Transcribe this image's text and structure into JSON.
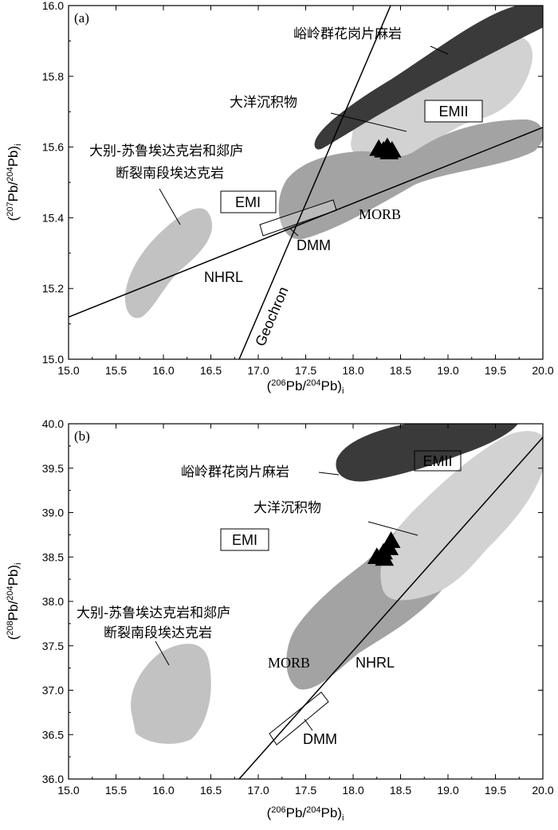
{
  "chart_data": [
    {
      "type": "scatter",
      "panel": "(a)",
      "xlabel": "(206Pb/204Pb)i",
      "ylabel": "(207Pb/204Pb)i",
      "xlim": [
        15.0,
        20.0
      ],
      "ylim": [
        15.0,
        16.0
      ],
      "x_ticks": [
        "15.0",
        "15.5",
        "16.0",
        "16.5",
        "17.0",
        "17.5",
        "18.0",
        "18.5",
        "19.0",
        "19.5",
        "20.0"
      ],
      "y_ticks": [
        "15.0",
        "15.2",
        "15.4",
        "15.6",
        "15.8",
        "16.0"
      ],
      "regions": [
        {
          "name": "峪岭群花岗片麻岩",
          "color": "#3a3a3a"
        },
        {
          "name": "大洋沉积物",
          "color": "#d2d2d2"
        },
        {
          "name": "MORB",
          "color": "#a3a3a3"
        },
        {
          "name": "大别-苏鲁埃达克岩和郯庐断裂南段埃达克岩",
          "color": "#c2c2c2"
        }
      ],
      "labels": {
        "emii": "EMII",
        "emi": "EMI",
        "dmm": "DMM",
        "nhrl": "NHRL",
        "morb": "MORB",
        "geochron": "Geochron",
        "granite": "峪岭群花岗片麻岩",
        "ocean": "大洋沉积物",
        "adakite_line1": "大别-苏鲁埃达克岩和郯庐",
        "adakite_line2": "断裂南段埃达克岩"
      },
      "samples": [
        {
          "x": 18.27,
          "y": 15.595
        },
        {
          "x": 18.32,
          "y": 15.59
        },
        {
          "x": 18.36,
          "y": 15.6
        },
        {
          "x": 18.41,
          "y": 15.59
        },
        {
          "x": 18.38,
          "y": 15.585
        }
      ]
    },
    {
      "type": "scatter",
      "panel": "(b)",
      "xlabel": "(206Pb/204Pb)i",
      "ylabel": "(208Pb/204Pb)i",
      "xlim": [
        15.0,
        20.0
      ],
      "ylim": [
        36.0,
        40.0
      ],
      "x_ticks": [
        "15.0",
        "15.5",
        "16.0",
        "16.5",
        "17.0",
        "17.5",
        "18.0",
        "18.5",
        "19.0",
        "19.5",
        "20.0"
      ],
      "y_ticks": [
        "36.0",
        "36.5",
        "37.0",
        "37.5",
        "38.0",
        "38.5",
        "39.0",
        "39.5",
        "40.0"
      ],
      "regions": [
        {
          "name": "峪岭群花岗片麻岩",
          "color": "#3a3a3a"
        },
        {
          "name": "大洋沉积物",
          "color": "#d2d2d2"
        },
        {
          "name": "MORB",
          "color": "#a3a3a3"
        },
        {
          "name": "大别-苏鲁埃达克岩和郯庐断裂南段埃达克岩",
          "color": "#c2c2c2"
        }
      ],
      "labels": {
        "emii": "EMII",
        "emi": "EMI",
        "dmm": "DMM",
        "nhrl": "NHRL",
        "morb": "MORB",
        "granite": "峪岭群花岗片麻岩",
        "ocean": "大洋沉积物",
        "adakite_line1": "大别-苏鲁埃达克岩和郯庐",
        "adakite_line2": "断裂南段埃达克岩"
      },
      "samples": [
        {
          "x": 18.25,
          "y": 38.5
        },
        {
          "x": 18.32,
          "y": 38.55
        },
        {
          "x": 18.38,
          "y": 38.6
        },
        {
          "x": 18.33,
          "y": 38.48
        },
        {
          "x": 18.4,
          "y": 38.68
        }
      ]
    }
  ]
}
